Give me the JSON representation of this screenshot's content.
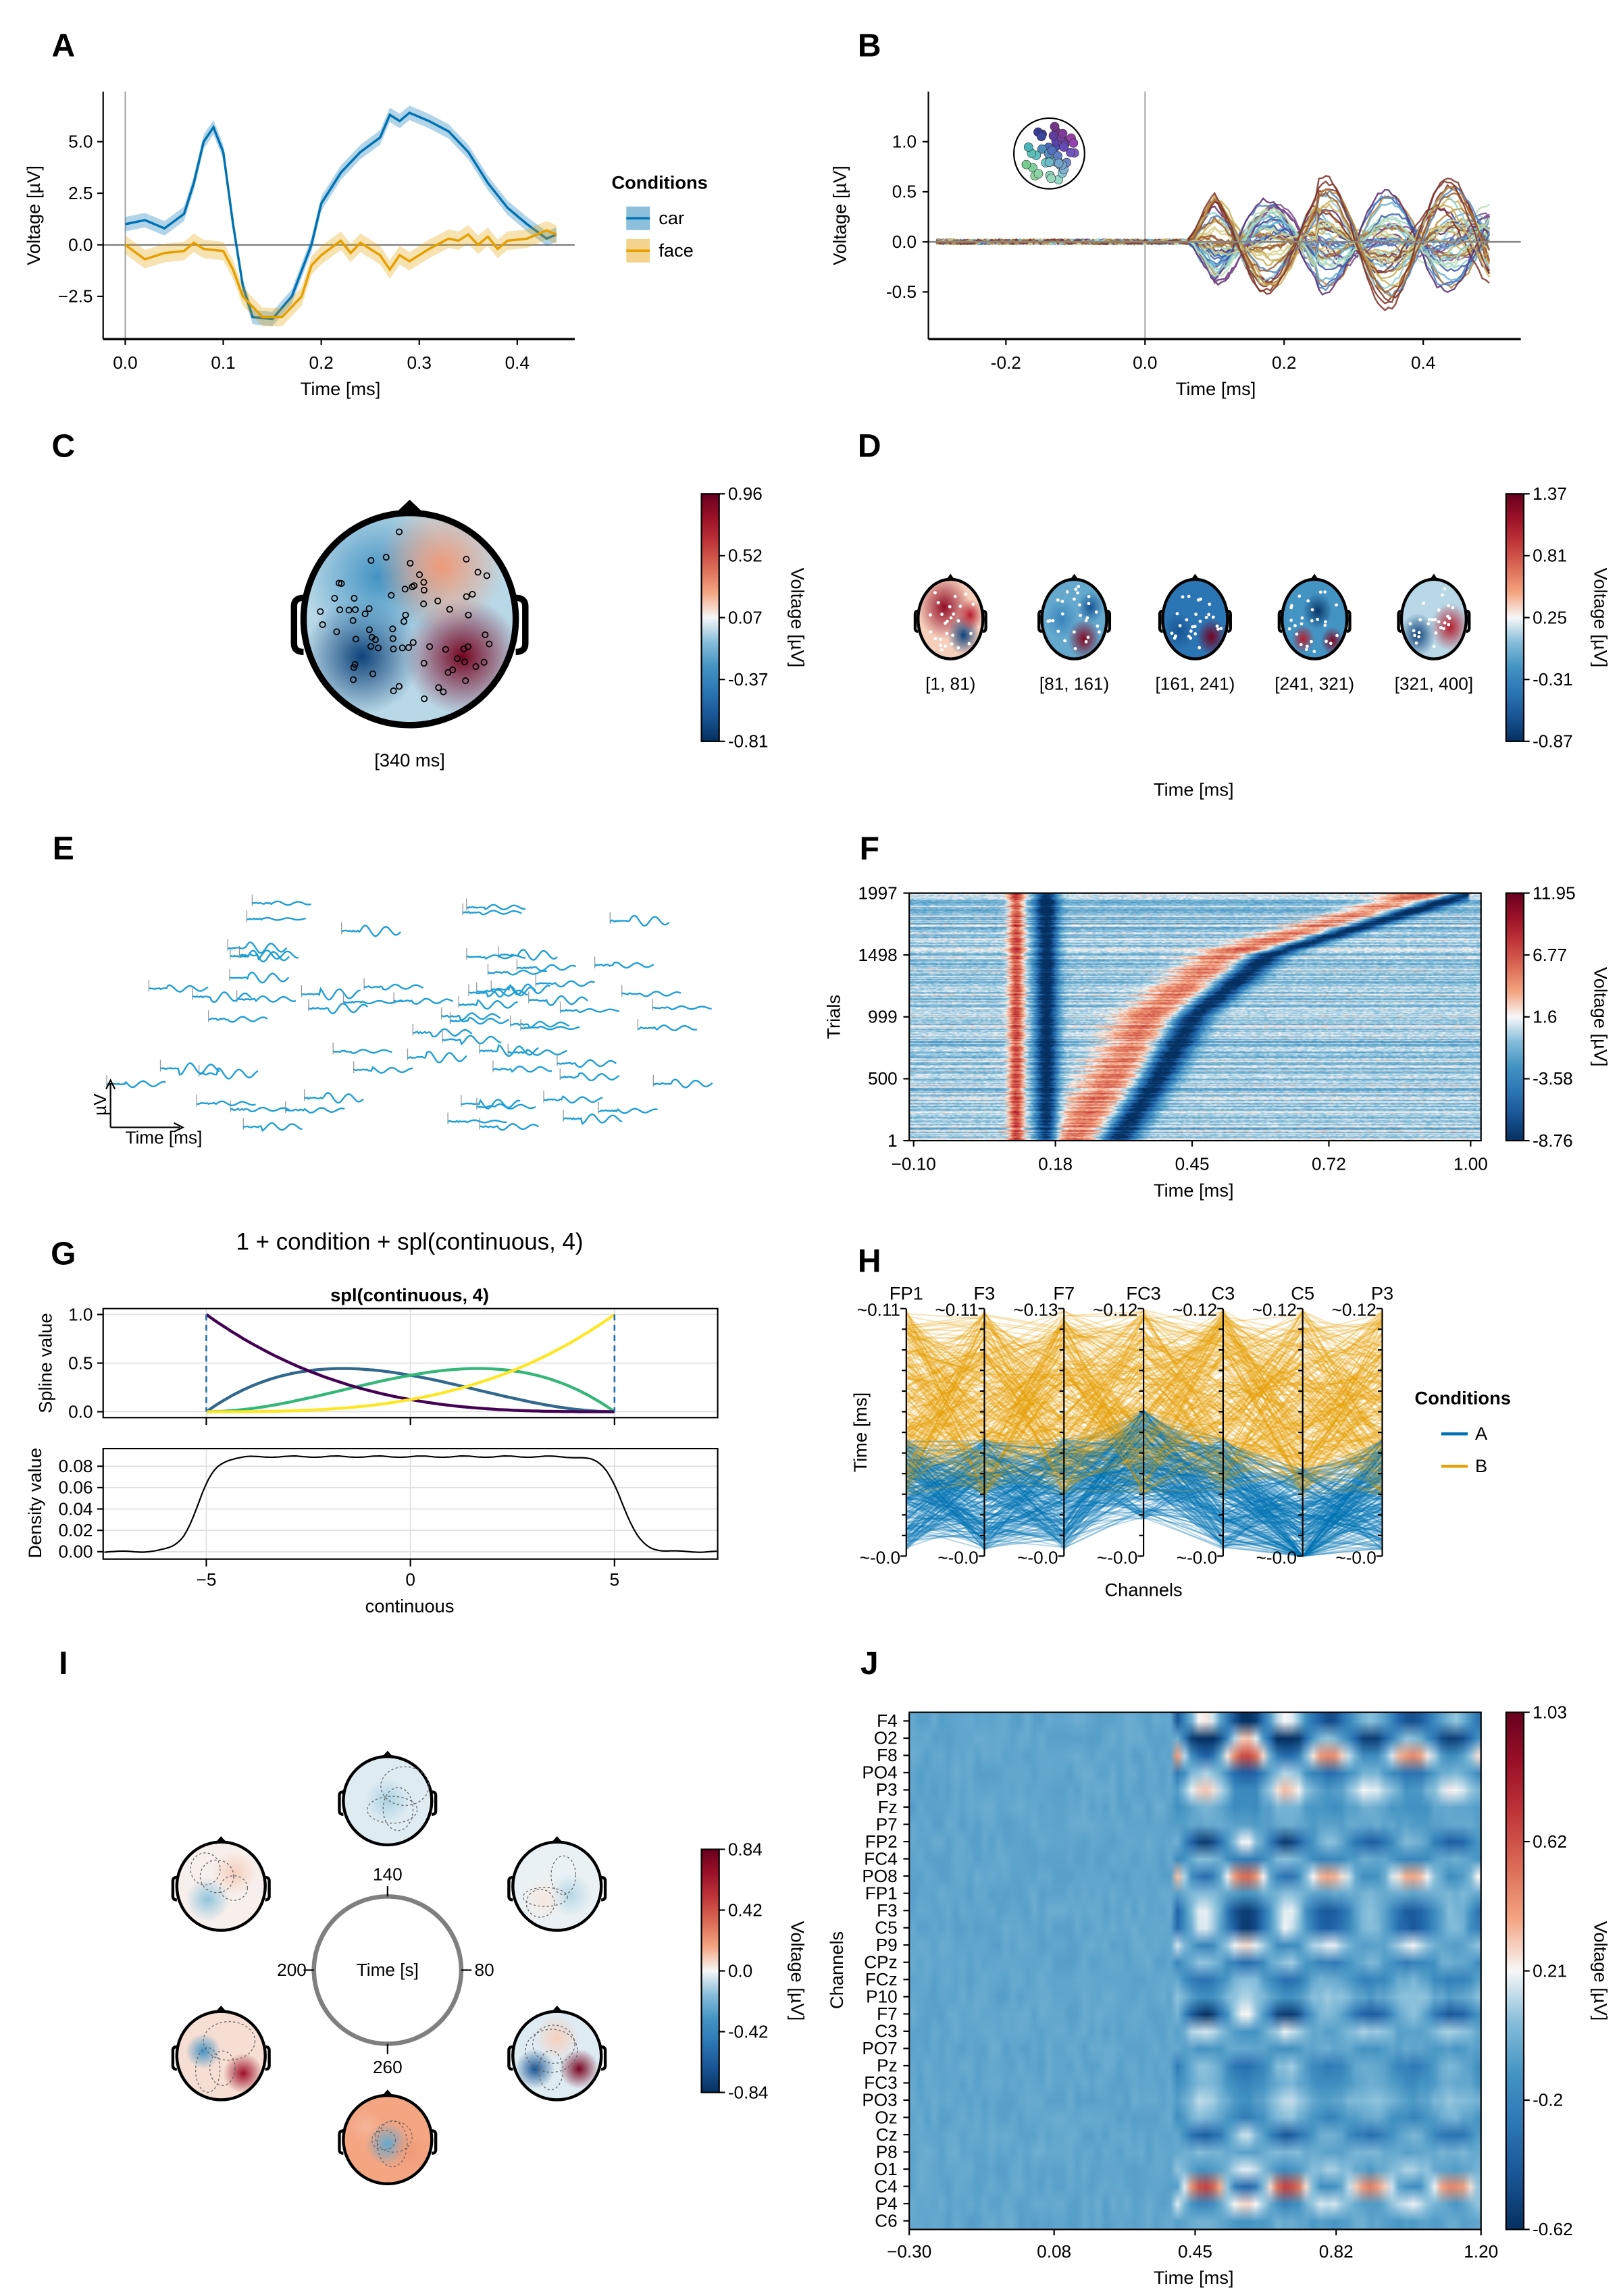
{
  "panels": [
    "A",
    "B",
    "C",
    "D",
    "E",
    "F",
    "G",
    "H",
    "I",
    "J"
  ],
  "colormap": {
    "name": "RdBu reversed",
    "low": "#053061",
    "mid": "#f7f7f7",
    "high": "#67001f"
  },
  "chart_data": [
    {
      "panel": "A",
      "type": "line",
      "xlabel": "Time [ms]",
      "ylabel": "Voltage [µV]",
      "xlim": [
        -0.02,
        0.46
      ],
      "ylim": [
        -4.5,
        7.0
      ],
      "xticks": [
        "0.0",
        "0.1",
        "0.2",
        "0.3",
        "0.4"
      ],
      "xtick_values": [
        0,
        0.1,
        0.2,
        0.3,
        0.4
      ],
      "yticks": [
        "5.0",
        "2.5",
        "0.0",
        "−2.5"
      ],
      "ytick_values": [
        5,
        2.5,
        0,
        -2.5
      ],
      "legend": {
        "title": "Conditions",
        "placement": "right"
      },
      "series": [
        {
          "name": "car",
          "color": "#0072b2",
          "band": 0.35,
          "x": [
            0,
            0.02,
            0.04,
            0.06,
            0.07,
            0.08,
            0.09,
            0.1,
            0.11,
            0.12,
            0.13,
            0.15,
            0.17,
            0.19,
            0.2,
            0.22,
            0.24,
            0.26,
            0.27,
            0.28,
            0.29,
            0.31,
            0.33,
            0.35,
            0.37,
            0.39,
            0.41,
            0.43,
            0.44
          ],
          "y": [
            1.0,
            1.2,
            0.8,
            1.5,
            3.0,
            5.0,
            5.7,
            4.5,
            1.0,
            -2.0,
            -3.5,
            -3.6,
            -2.5,
            0.0,
            2.0,
            3.5,
            4.5,
            5.2,
            6.3,
            6.0,
            6.4,
            6.0,
            5.5,
            4.5,
            3.0,
            1.8,
            1.0,
            0.3,
            0.5
          ]
        },
        {
          "name": "face",
          "color": "#e69f00",
          "band": 0.45,
          "x": [
            0,
            0.02,
            0.04,
            0.06,
            0.07,
            0.08,
            0.1,
            0.11,
            0.12,
            0.14,
            0.16,
            0.18,
            0.19,
            0.2,
            0.22,
            0.23,
            0.24,
            0.26,
            0.27,
            0.28,
            0.29,
            0.31,
            0.33,
            0.34,
            0.35,
            0.36,
            0.37,
            0.38,
            0.39,
            0.41,
            0.43,
            0.44
          ],
          "y": [
            0.0,
            -0.7,
            -0.4,
            -0.3,
            0.1,
            -0.2,
            -0.3,
            -1.2,
            -2.5,
            -3.5,
            -3.5,
            -2.5,
            -1.0,
            -0.5,
            0.2,
            -0.4,
            0.1,
            -0.5,
            -1.2,
            -0.5,
            -0.8,
            -0.2,
            0.3,
            0.2,
            0.5,
            0.0,
            0.4,
            -0.2,
            0.2,
            0.3,
            0.7,
            0.5
          ]
        }
      ]
    },
    {
      "panel": "B",
      "type": "line",
      "subtype": "butterfly",
      "xlabel": "Time [ms]",
      "ylabel": "Voltage [µV]",
      "xlim": [
        -0.32,
        0.54
      ],
      "ylim": [
        -0.95,
        1.45
      ],
      "xticks": [
        "-0.2",
        "0.0",
        "0.2",
        "0.4"
      ],
      "xtick_values": [
        -0.2,
        0,
        0.2,
        0.4
      ],
      "yticks": [
        "1.0",
        "0.5",
        "0.0",
        "-0.5"
      ],
      "ytick_values": [
        1,
        0.5,
        0,
        -0.5
      ],
      "channel_legend": "head-position-color-icon"
    },
    {
      "panel": "C",
      "type": "heatmap",
      "subtype": "topoplot",
      "label": "[340 ms]",
      "colorbar": {
        "title": "Voltage [µV]",
        "ticks": [
          "0.96",
          "0.52",
          "0.07",
          "-0.37",
          "-0.81"
        ],
        "range": [
          -0.81,
          0.96
        ]
      }
    },
    {
      "panel": "D",
      "type": "heatmap",
      "subtype": "topoplot-series",
      "xlabel": "Time [ms]",
      "bins": [
        "[1, 81)",
        "[81, 161)",
        "[161, 241)",
        "[241, 321)",
        "[321, 400]"
      ],
      "colorbar": {
        "title": "Voltage [µV]",
        "ticks": [
          "1.37",
          "0.81",
          "0.25",
          "-0.31",
          "-0.87"
        ],
        "range": [
          -0.87,
          1.37
        ]
      }
    },
    {
      "panel": "E",
      "type": "line",
      "subtype": "channel-image",
      "trace_color": "#1f9fd6",
      "axis_legend": {
        "y": "µV",
        "x": "Time [ms]"
      }
    },
    {
      "panel": "F",
      "type": "heatmap",
      "subtype": "erp-image",
      "xlabel": "Time [ms]",
      "ylabel": "Trials",
      "xticks": [
        "−0.10",
        "0.18",
        "0.45",
        "0.72",
        "1.00"
      ],
      "xtick_values": [
        -0.1,
        0.18,
        0.45,
        0.72,
        1.0
      ],
      "yticks": [
        "1997",
        "1498",
        "999",
        "500",
        "1"
      ],
      "ytick_values": [
        1997,
        1498,
        999,
        500,
        1
      ],
      "colorbar": {
        "title": "Voltage [µV]",
        "ticks": [
          "11.95",
          "6.77",
          "1.6",
          "-3.58",
          "-8.76"
        ],
        "range": [
          -8.76,
          11.95
        ]
      }
    },
    {
      "panel": "G",
      "type": "line",
      "title": "1 + condition + spl(continuous, 4)",
      "subplots": [
        {
          "title": "spl(continuous, 4)",
          "ylabel": "Spline value",
          "yticks": [
            "1.0",
            "0.5",
            "0.0"
          ],
          "ytick_values": [
            1,
            0.5,
            0
          ],
          "knots": [
            -5,
            5
          ],
          "basis_colors": [
            "#440154",
            "#31688e",
            "#35b779",
            "#fde725"
          ]
        },
        {
          "ylabel": "Density value",
          "yticks": [
            "0.08",
            "0.06",
            "0.04",
            "0.02",
            "0.00"
          ],
          "ytick_values": [
            0.08,
            0.06,
            0.04,
            0.02,
            0
          ],
          "plateau": 0.089
        }
      ],
      "xlabel": "continuous",
      "xticks": [
        "−5",
        "0",
        "5"
      ],
      "xtick_values": [
        -5,
        0,
        5
      ],
      "xlim": [
        -7.5,
        7.5
      ]
    },
    {
      "panel": "H",
      "type": "line",
      "subtype": "parallel-coordinates",
      "xlabel": "Channels",
      "ylabel": "Time [ms]",
      "axes": [
        "FP1",
        "F3",
        "F7",
        "FC3",
        "C3",
        "C5",
        "P3"
      ],
      "top_ticks": [
        "~0.11",
        "~0.11",
        "~0.13",
        "~0.12",
        "~0.12",
        "~0.12",
        "~0.12"
      ],
      "bottom_ticks": [
        "~-0.0",
        "~-0.0",
        "~-0.0",
        "~-0.0",
        "~-0.0",
        "~-0.0",
        "~-0.0"
      ],
      "legend": {
        "title": "Conditions",
        "placement": "right"
      },
      "series": [
        {
          "name": "A",
          "color": "#0072b2"
        },
        {
          "name": "B",
          "color": "#e69f00"
        }
      ]
    },
    {
      "panel": "I",
      "type": "heatmap",
      "subtype": "circular-topoplot",
      "center_label": "Time [s]",
      "angle_labels": [
        "140",
        "80",
        "260",
        "200"
      ],
      "colorbar": {
        "title": "Voltage [µV]",
        "ticks": [
          "0.84",
          "0.42",
          "0.0",
          "-0.42",
          "-0.84"
        ],
        "range": [
          -0.84,
          0.84
        ]
      }
    },
    {
      "panel": "J",
      "type": "heatmap",
      "subtype": "channel-image",
      "xlabel": "Time [ms]",
      "ylabel": "Channels",
      "channels": [
        "F4",
        "O2",
        "F8",
        "PO4",
        "P3",
        "Fz",
        "P7",
        "FP2",
        "FC4",
        "PO8",
        "FP1",
        "F3",
        "C5",
        "P9",
        "CPz",
        "FCz",
        "P10",
        "F7",
        "C3",
        "PO7",
        "Pz",
        "FC3",
        "PO3",
        "Oz",
        "Cz",
        "P8",
        "O1",
        "C4",
        "P4",
        "C6"
      ],
      "xticks": [
        "−0.30",
        "0.08",
        "0.45",
        "0.82",
        "1.20"
      ],
      "xtick_values": [
        -0.3,
        0.08,
        0.45,
        0.82,
        1.2
      ],
      "colorbar": {
        "title": "Voltage [µV]",
        "ticks": [
          "1.03",
          "0.62",
          "0.21",
          "-0.2",
          "-0.62"
        ],
        "range": [
          -0.62,
          1.03
        ]
      }
    }
  ]
}
